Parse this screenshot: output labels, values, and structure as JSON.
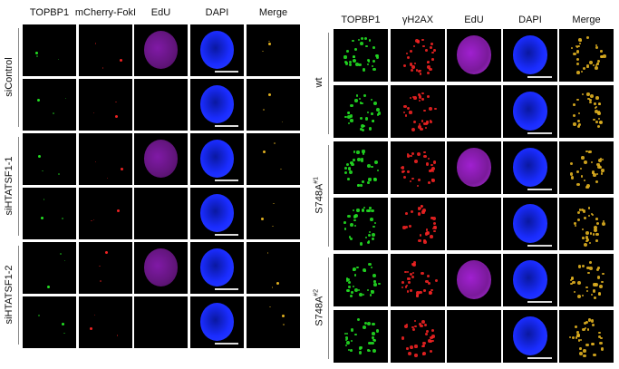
{
  "left_panel": {
    "columns": [
      "TOPBP1",
      "mCherry-FokI",
      "EdU",
      "DAPI",
      "Merge"
    ],
    "groups": [
      {
        "label": "siControl"
      },
      {
        "label": "siHTATSF1-1"
      },
      {
        "label": "siHTATSF1-2"
      }
    ],
    "edu_positive_rows": [
      0,
      2,
      4
    ]
  },
  "right_panel": {
    "columns": [
      "TOPBP1",
      "γH2AX",
      "EdU",
      "DAPI",
      "Merge"
    ],
    "groups": [
      {
        "label": "S748A",
        "sup": ""
      },
      {
        "label": "S748A",
        "sup": "#1"
      },
      {
        "label": "S748A",
        "sup": "#2"
      }
    ],
    "first_group_label": "wt",
    "edu_positive_rows": [
      0,
      2,
      4
    ]
  },
  "colors": {
    "topbp1": "#22dd22",
    "red": "#ee2222",
    "edu": "#a020d0",
    "dapi": "#1a2cff",
    "merge": "#e0b020"
  }
}
